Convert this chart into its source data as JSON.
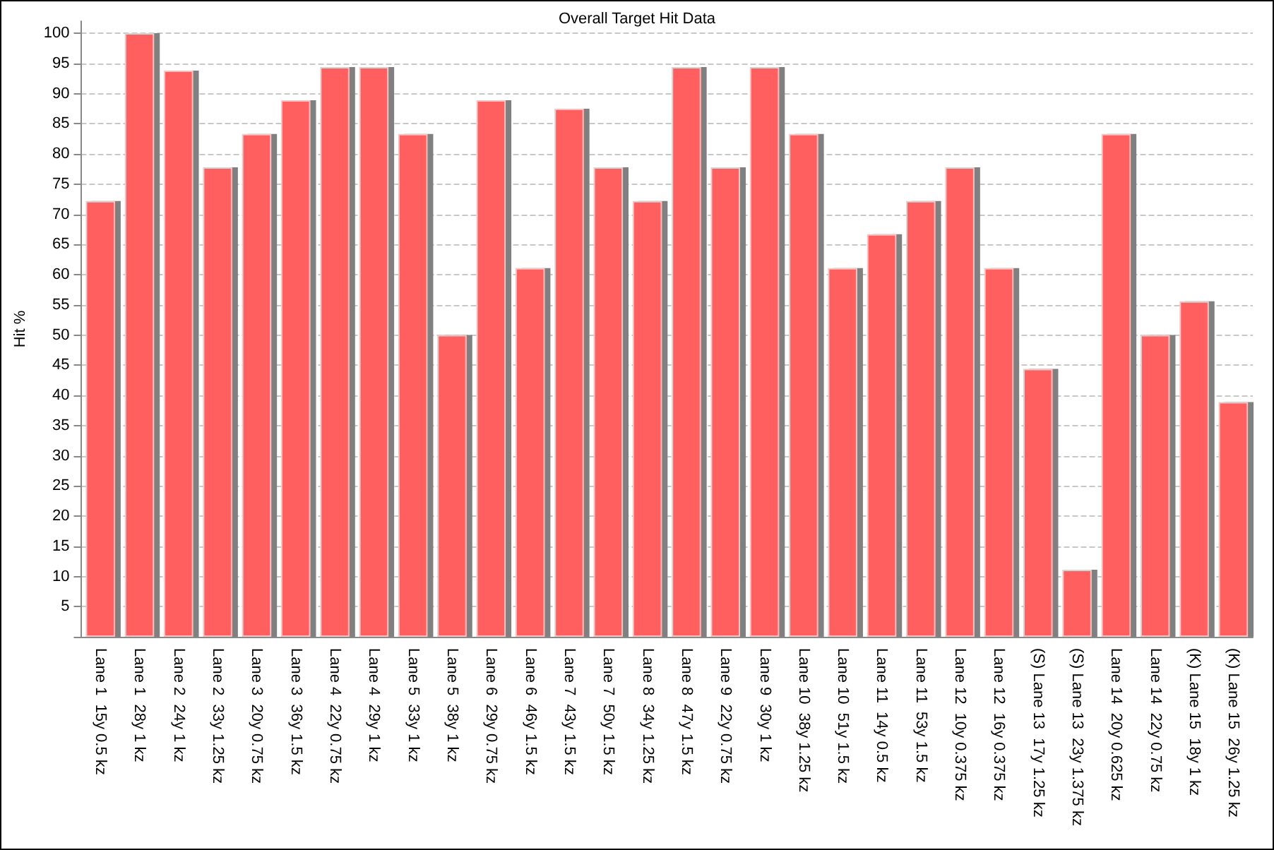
{
  "chart_data": {
    "type": "bar",
    "title": "Overall Target Hit Data",
    "ylabel": "Hit %",
    "categories": [
      "Lane 1  15y 0.5 kz",
      "Lane 1  28y 1 kz",
      "Lane 2  24y 1 kz",
      "Lane 2  33y 1.25 kz",
      "Lane 3  20y 0.75 kz",
      "Lane 3  36y 1.5 kz",
      "Lane 4  22y 0.75 kz",
      "Lane 4  29y 1 kz",
      "Lane 5  33y 1 kz",
      "Lane 5  38y 1 kz",
      "Lane 6  29y 0.75 kz",
      "Lane 6  46y 1.5 kz",
      "Lane 7  43y 1.5 kz",
      "Lane 7  50y 1.5 kz",
      "Lane 8  34y 1.25 kz",
      "Lane 8  47y 1.5 kz",
      "Lane 9  22y 0.75 kz",
      "Lane 9  30y 1 kz",
      "Lane 10  38y 1.25 kz",
      "Lane 10  51y 1.5 kz",
      "Lane 11  14y 0.5 kz",
      "Lane 11  53y 1.5 kz",
      "Lane 12  10y 0.375 kz",
      "Lane 12  16y 0.375 kz",
      "(S) Lane 13  17y 1.25 kz",
      "(S) Lane 13  23y 1.375 kz",
      "Lane 14  20y 0.625 kz",
      "Lane 14  22y 0.75 kz",
      "(K) Lane 15  18y 1 kz",
      "(K) Lane 15  26y 1.25 kz"
    ],
    "values": [
      72.2,
      100,
      93.8,
      77.8,
      83.3,
      88.9,
      94.4,
      94.4,
      83.3,
      50,
      88.9,
      61.1,
      87.5,
      77.8,
      72.2,
      94.4,
      77.8,
      94.4,
      83.3,
      61.1,
      66.7,
      72.2,
      77.8,
      61.1,
      44.4,
      11.1,
      83.3,
      50,
      55.6,
      38.9
    ],
    "color": "#ff5f5f",
    "ylim": [
      0,
      102
    ],
    "yticks": [
      {
        "value": 0,
        "label": null
      },
      5,
      10,
      15,
      20,
      25,
      30,
      35,
      40,
      45,
      50,
      55,
      60,
      65,
      70,
      75,
      80,
      85,
      90,
      95,
      100
    ],
    "grid": "y"
  }
}
